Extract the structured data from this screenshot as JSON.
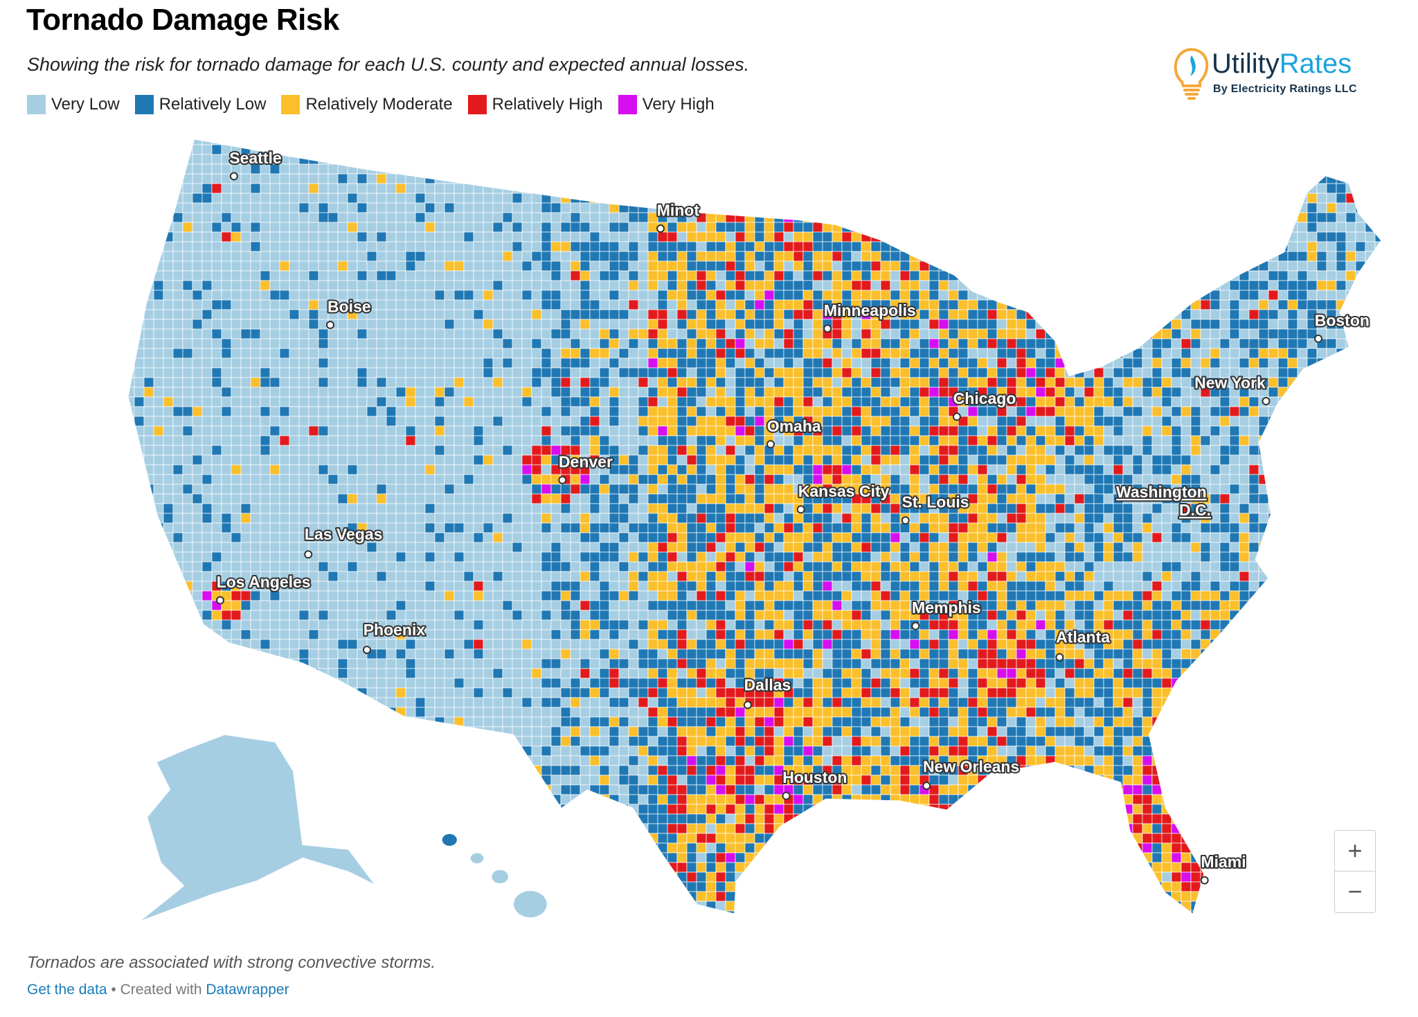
{
  "header": {
    "title": "Tornado Damage Risk",
    "subtitle": "Showing the risk for tornado damage for each U.S. county and expected annual losses."
  },
  "legend": [
    {
      "label": "Very Low",
      "color": "#a6cee3"
    },
    {
      "label": "Relatively Low",
      "color": "#1f78b4"
    },
    {
      "label": "Relatively Moderate",
      "color": "#fbbf2b"
    },
    {
      "label": "Relatively High",
      "color": "#e31a1c"
    },
    {
      "label": "Very High",
      "color": "#d60ef0"
    }
  ],
  "logo": {
    "name_part1": "Utility",
    "name_part2": "Rates",
    "tagline": "By Electricity Ratings LLC"
  },
  "map": {
    "cities": [
      "Seattle",
      "Minot",
      "Boise",
      "Minneapolis",
      "Boston",
      "New York",
      "Chicago",
      "Omaha",
      "Denver",
      "Kansas City",
      "St. Louis",
      "Las Vegas",
      "Los Angeles",
      "Phoenix",
      "Memphis",
      "Atlanta",
      "Dallas",
      "Houston",
      "New Orleans",
      "Miami"
    ],
    "capital_line1": "Washington",
    "capital_line2": "D.C.",
    "zoom_in": "+",
    "zoom_out": "−"
  },
  "footer": {
    "note": "Tornados are associated with strong convective storms.",
    "get_data": "Get the data",
    "separator": " • Created with ",
    "datawrapper": "Datawrapper"
  }
}
